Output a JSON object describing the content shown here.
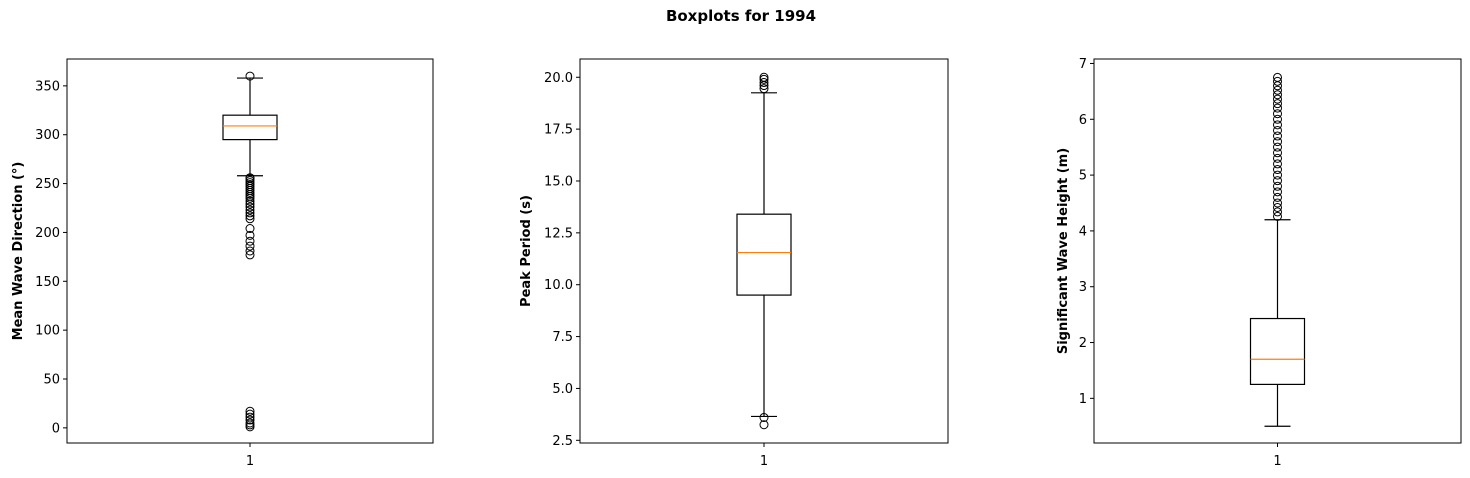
{
  "figure": {
    "title": "Boxplots for 1994"
  },
  "colors": {
    "box": "#000000",
    "median": "#ff7f0e",
    "background": "#ffffff"
  },
  "chart_data": [
    {
      "type": "boxplot",
      "ylabel": "Mean Wave Direction (°)",
      "xlabel": "",
      "categories": [
        "1"
      ],
      "ylim": [
        -15.5,
        377.5
      ],
      "yticks": [
        0,
        50,
        100,
        150,
        200,
        250,
        300,
        350
      ],
      "ytick_labels": [
        "0",
        "50",
        "100",
        "150",
        "200",
        "250",
        "300",
        "350"
      ],
      "box": {
        "whisker_low": 258,
        "q1": 295,
        "median": 309,
        "q3": 320,
        "whisker_high": 358
      },
      "outliers": [
        360,
        256,
        255,
        253,
        251,
        249,
        247,
        245,
        243,
        241,
        239,
        237,
        235,
        232,
        229,
        226,
        223,
        220,
        217,
        214,
        204,
        197,
        191,
        186,
        181,
        177,
        17,
        14,
        11,
        8,
        5,
        3,
        1
      ],
      "grid": false
    },
    {
      "type": "boxplot",
      "ylabel": "Peak Period (s)",
      "xlabel": "",
      "categories": [
        "1"
      ],
      "ylim": [
        2.37,
        20.88
      ],
      "yticks": [
        2.5,
        5.0,
        7.5,
        10.0,
        12.5,
        15.0,
        17.5,
        20.0
      ],
      "ytick_labels": [
        "2.5",
        "5.0",
        "7.5",
        "10.0",
        "12.5",
        "15.0",
        "17.5",
        "20.0"
      ],
      "box": {
        "whisker_low": 3.65,
        "q1": 9.5,
        "median": 11.55,
        "q3": 13.4,
        "whisker_high": 19.25
      },
      "outliers": [
        20.0,
        19.9,
        19.75,
        19.6,
        19.45,
        3.6,
        3.25
      ],
      "grid": false
    },
    {
      "type": "boxplot",
      "ylabel": "Significant Wave Height (m)",
      "xlabel": "",
      "categories": [
        "1"
      ],
      "ylim": [
        0.2,
        7.08
      ],
      "yticks": [
        1,
        2,
        3,
        4,
        5,
        6,
        7
      ],
      "ytick_labels": [
        "1",
        "2",
        "3",
        "4",
        "5",
        "6",
        "7"
      ],
      "box": {
        "whisker_low": 0.5,
        "q1": 1.25,
        "median": 1.7,
        "q3": 2.43,
        "whisker_high": 4.2
      },
      "outliers": [
        6.75,
        6.68,
        6.6,
        6.52,
        6.44,
        6.36,
        6.28,
        6.2,
        6.1,
        6.0,
        5.9,
        5.8,
        5.7,
        5.6,
        5.5,
        5.4,
        5.3,
        5.2,
        5.1,
        5.0,
        4.9,
        4.8,
        4.7,
        4.6,
        4.5,
        4.42,
        4.34,
        4.26
      ],
      "grid": false
    }
  ]
}
